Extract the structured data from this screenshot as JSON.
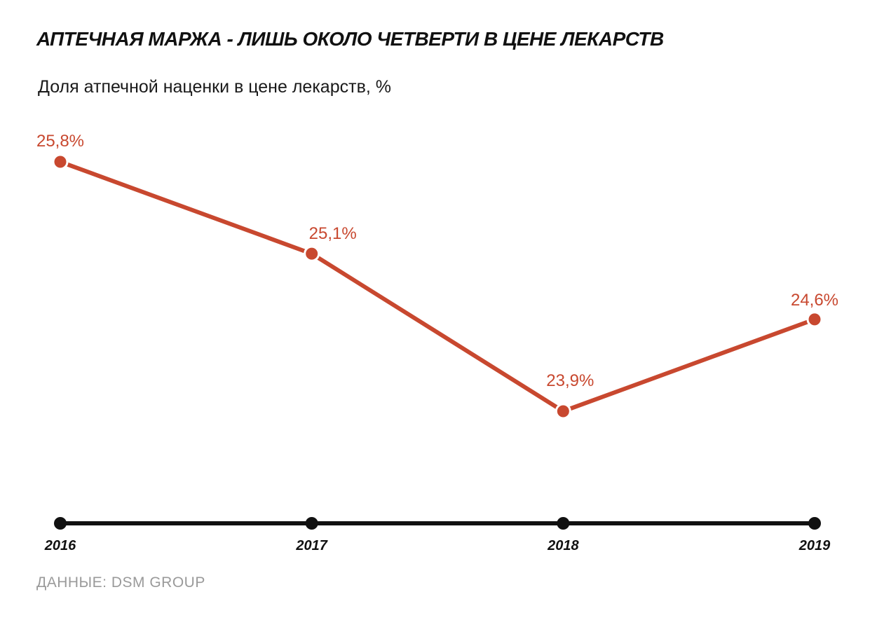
{
  "title": "АПТЕЧНАЯ МАРЖА - ЛИШЬ ОКОЛО ЧЕТВЕРТИ В ЦЕНЕ ЛЕКАРСТВ",
  "subtitle": "Доля атпечной наценки в цене лекарств, %",
  "source": "ДАННЫЕ: DSM GROUP",
  "colors": {
    "series": "#c8482f",
    "axis": "#111111",
    "source": "#9a9a9a"
  },
  "chart_data": {
    "type": "line",
    "title": "АПТЕЧНАЯ МАРЖА - ЛИШЬ ОКОЛО ЧЕТВЕРТИ В ЦЕНЕ ЛЕКАРСТВ",
    "subtitle": "Доля атпечной наценки в цене лекарств, %",
    "xlabel": "",
    "ylabel": "",
    "categories": [
      "2016",
      "2017",
      "2018",
      "2019"
    ],
    "series": [
      {
        "values": [
          25.8,
          25.1,
          23.9,
          24.6
        ],
        "labels": [
          "25,8%",
          "25,1%",
          "23,9%",
          "24,6%"
        ]
      }
    ],
    "grid": false,
    "legend": "none"
  }
}
